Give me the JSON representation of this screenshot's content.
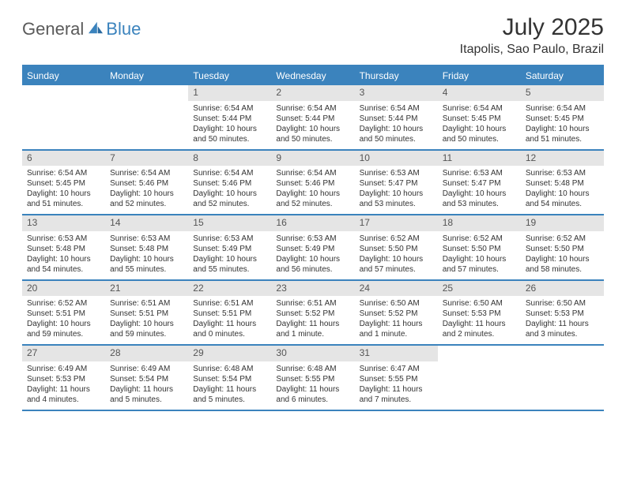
{
  "brand": {
    "text1": "General",
    "text2": "Blue"
  },
  "title": "July 2025",
  "location": "Itapolis, Sao Paulo, Brazil",
  "colors": {
    "header_bg": "#3b83bd",
    "header_text": "#ffffff",
    "daynum_bg": "#e5e5e5",
    "border": "#3b83bd",
    "body_text": "#333333",
    "logo_gray": "#5a5a5a",
    "logo_blue": "#3b83bd"
  },
  "dayNames": [
    "Sunday",
    "Monday",
    "Tuesday",
    "Wednesday",
    "Thursday",
    "Friday",
    "Saturday"
  ],
  "weeks": [
    [
      {
        "n": "",
        "sr": "",
        "ss": "",
        "dl": ""
      },
      {
        "n": "",
        "sr": "",
        "ss": "",
        "dl": ""
      },
      {
        "n": "1",
        "sr": "Sunrise: 6:54 AM",
        "ss": "Sunset: 5:44 PM",
        "dl": "Daylight: 10 hours and 50 minutes."
      },
      {
        "n": "2",
        "sr": "Sunrise: 6:54 AM",
        "ss": "Sunset: 5:44 PM",
        "dl": "Daylight: 10 hours and 50 minutes."
      },
      {
        "n": "3",
        "sr": "Sunrise: 6:54 AM",
        "ss": "Sunset: 5:44 PM",
        "dl": "Daylight: 10 hours and 50 minutes."
      },
      {
        "n": "4",
        "sr": "Sunrise: 6:54 AM",
        "ss": "Sunset: 5:45 PM",
        "dl": "Daylight: 10 hours and 50 minutes."
      },
      {
        "n": "5",
        "sr": "Sunrise: 6:54 AM",
        "ss": "Sunset: 5:45 PM",
        "dl": "Daylight: 10 hours and 51 minutes."
      }
    ],
    [
      {
        "n": "6",
        "sr": "Sunrise: 6:54 AM",
        "ss": "Sunset: 5:45 PM",
        "dl": "Daylight: 10 hours and 51 minutes."
      },
      {
        "n": "7",
        "sr": "Sunrise: 6:54 AM",
        "ss": "Sunset: 5:46 PM",
        "dl": "Daylight: 10 hours and 52 minutes."
      },
      {
        "n": "8",
        "sr": "Sunrise: 6:54 AM",
        "ss": "Sunset: 5:46 PM",
        "dl": "Daylight: 10 hours and 52 minutes."
      },
      {
        "n": "9",
        "sr": "Sunrise: 6:54 AM",
        "ss": "Sunset: 5:46 PM",
        "dl": "Daylight: 10 hours and 52 minutes."
      },
      {
        "n": "10",
        "sr": "Sunrise: 6:53 AM",
        "ss": "Sunset: 5:47 PM",
        "dl": "Daylight: 10 hours and 53 minutes."
      },
      {
        "n": "11",
        "sr": "Sunrise: 6:53 AM",
        "ss": "Sunset: 5:47 PM",
        "dl": "Daylight: 10 hours and 53 minutes."
      },
      {
        "n": "12",
        "sr": "Sunrise: 6:53 AM",
        "ss": "Sunset: 5:48 PM",
        "dl": "Daylight: 10 hours and 54 minutes."
      }
    ],
    [
      {
        "n": "13",
        "sr": "Sunrise: 6:53 AM",
        "ss": "Sunset: 5:48 PM",
        "dl": "Daylight: 10 hours and 54 minutes."
      },
      {
        "n": "14",
        "sr": "Sunrise: 6:53 AM",
        "ss": "Sunset: 5:48 PM",
        "dl": "Daylight: 10 hours and 55 minutes."
      },
      {
        "n": "15",
        "sr": "Sunrise: 6:53 AM",
        "ss": "Sunset: 5:49 PM",
        "dl": "Daylight: 10 hours and 55 minutes."
      },
      {
        "n": "16",
        "sr": "Sunrise: 6:53 AM",
        "ss": "Sunset: 5:49 PM",
        "dl": "Daylight: 10 hours and 56 minutes."
      },
      {
        "n": "17",
        "sr": "Sunrise: 6:52 AM",
        "ss": "Sunset: 5:50 PM",
        "dl": "Daylight: 10 hours and 57 minutes."
      },
      {
        "n": "18",
        "sr": "Sunrise: 6:52 AM",
        "ss": "Sunset: 5:50 PM",
        "dl": "Daylight: 10 hours and 57 minutes."
      },
      {
        "n": "19",
        "sr": "Sunrise: 6:52 AM",
        "ss": "Sunset: 5:50 PM",
        "dl": "Daylight: 10 hours and 58 minutes."
      }
    ],
    [
      {
        "n": "20",
        "sr": "Sunrise: 6:52 AM",
        "ss": "Sunset: 5:51 PM",
        "dl": "Daylight: 10 hours and 59 minutes."
      },
      {
        "n": "21",
        "sr": "Sunrise: 6:51 AM",
        "ss": "Sunset: 5:51 PM",
        "dl": "Daylight: 10 hours and 59 minutes."
      },
      {
        "n": "22",
        "sr": "Sunrise: 6:51 AM",
        "ss": "Sunset: 5:51 PM",
        "dl": "Daylight: 11 hours and 0 minutes."
      },
      {
        "n": "23",
        "sr": "Sunrise: 6:51 AM",
        "ss": "Sunset: 5:52 PM",
        "dl": "Daylight: 11 hours and 1 minute."
      },
      {
        "n": "24",
        "sr": "Sunrise: 6:50 AM",
        "ss": "Sunset: 5:52 PM",
        "dl": "Daylight: 11 hours and 1 minute."
      },
      {
        "n": "25",
        "sr": "Sunrise: 6:50 AM",
        "ss": "Sunset: 5:53 PM",
        "dl": "Daylight: 11 hours and 2 minutes."
      },
      {
        "n": "26",
        "sr": "Sunrise: 6:50 AM",
        "ss": "Sunset: 5:53 PM",
        "dl": "Daylight: 11 hours and 3 minutes."
      }
    ],
    [
      {
        "n": "27",
        "sr": "Sunrise: 6:49 AM",
        "ss": "Sunset: 5:53 PM",
        "dl": "Daylight: 11 hours and 4 minutes."
      },
      {
        "n": "28",
        "sr": "Sunrise: 6:49 AM",
        "ss": "Sunset: 5:54 PM",
        "dl": "Daylight: 11 hours and 5 minutes."
      },
      {
        "n": "29",
        "sr": "Sunrise: 6:48 AM",
        "ss": "Sunset: 5:54 PM",
        "dl": "Daylight: 11 hours and 5 minutes."
      },
      {
        "n": "30",
        "sr": "Sunrise: 6:48 AM",
        "ss": "Sunset: 5:55 PM",
        "dl": "Daylight: 11 hours and 6 minutes."
      },
      {
        "n": "31",
        "sr": "Sunrise: 6:47 AM",
        "ss": "Sunset: 5:55 PM",
        "dl": "Daylight: 11 hours and 7 minutes."
      },
      {
        "n": "",
        "sr": "",
        "ss": "",
        "dl": ""
      },
      {
        "n": "",
        "sr": "",
        "ss": "",
        "dl": ""
      }
    ]
  ]
}
